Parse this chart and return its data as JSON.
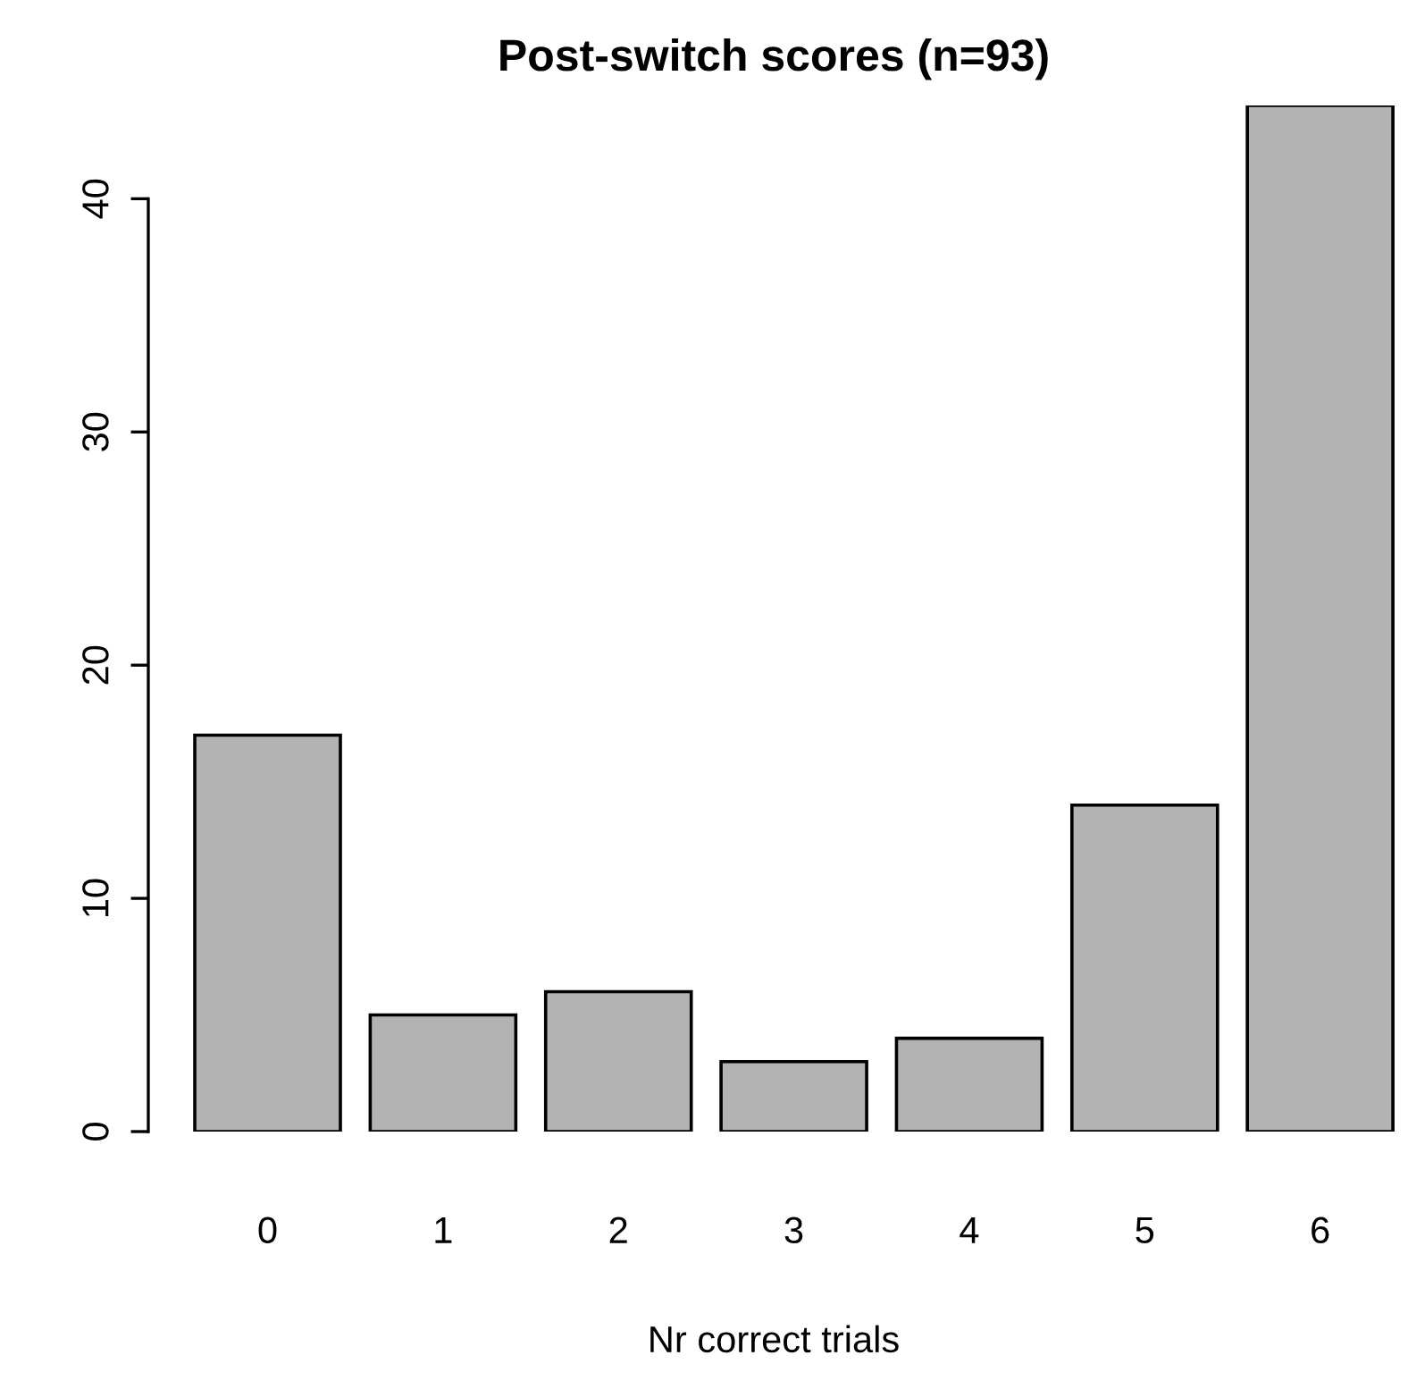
{
  "chart_data": {
    "type": "bar",
    "title": "Post-switch scores (n=93)",
    "xlabel": "Nr correct trials",
    "categories": [
      "0",
      "1",
      "2",
      "3",
      "4",
      "5",
      "6"
    ],
    "values": [
      17,
      5,
      6,
      3,
      4,
      14,
      44
    ],
    "color": "#b3b3b3",
    "ylim": [
      0,
      44
    ],
    "yticks": [
      0,
      10,
      20,
      30,
      40
    ],
    "grid": false
  }
}
